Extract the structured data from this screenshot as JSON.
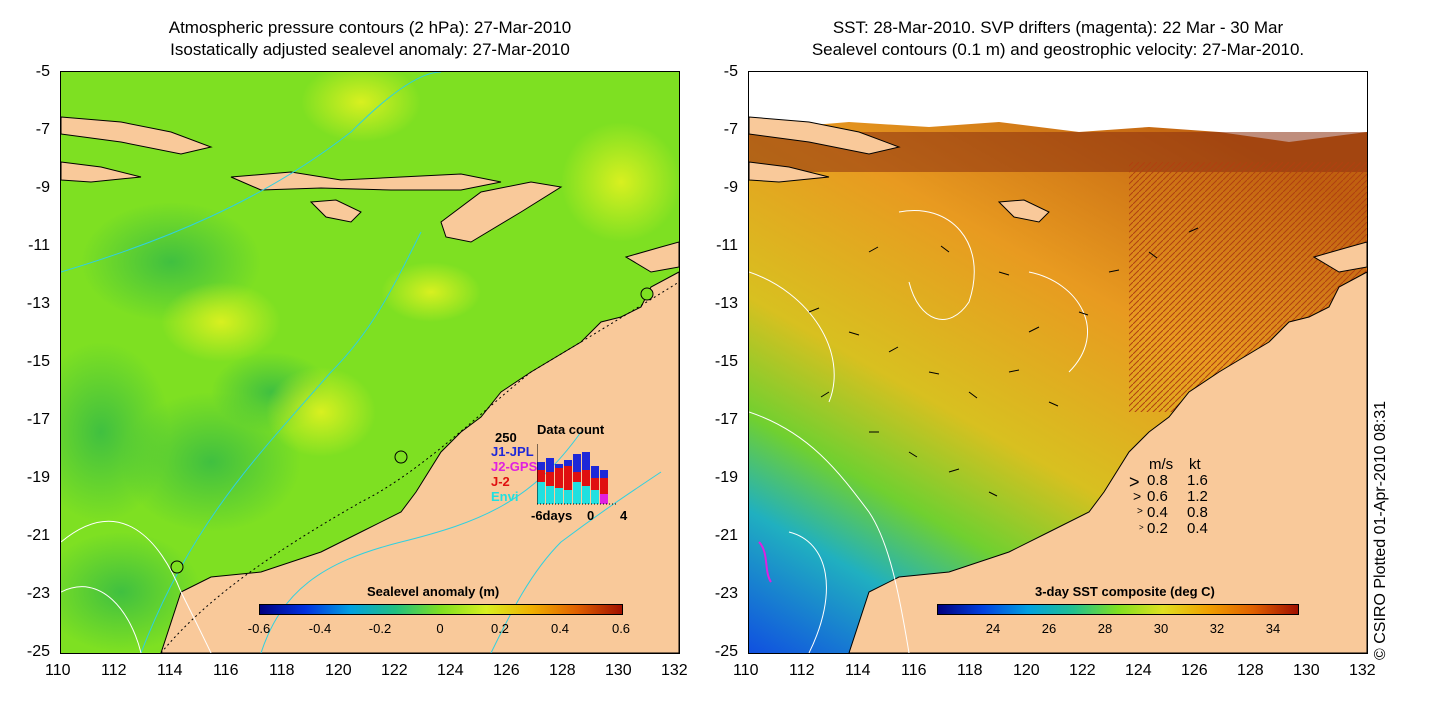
{
  "left_panel": {
    "title_line1": "Atmospheric pressure contours (2 hPa): 27-Mar-2010",
    "title_line2": "Isostatically adjusted sealevel anomaly: 27-Mar-2010",
    "x_ticks": [
      "110",
      "112",
      "114",
      "116",
      "118",
      "120",
      "122",
      "124",
      "126",
      "128",
      "130",
      "132"
    ],
    "y_ticks": [
      "-5",
      "-7",
      "-9",
      "-11",
      "-13",
      "-15",
      "-17",
      "-19",
      "-21",
      "-23",
      "-25"
    ],
    "colorbar_title": "Sealevel anomaly (m)",
    "colorbar_ticks": [
      "-0.6",
      "-0.4",
      "-0.2",
      "0",
      "0.2",
      "0.4",
      "0.6"
    ],
    "colorbar_range": [
      -0.6,
      0.6
    ],
    "data_count": {
      "title": "Data count",
      "max_label": "250",
      "series_labels": [
        "J1-JPL",
        "J2-GPS",
        "J-2",
        "Envi"
      ],
      "series_colors": [
        "#1e28d8",
        "#e020e0",
        "#e01010",
        "#20e0e0"
      ],
      "axis_labels": [
        "-6days",
        "0",
        "4"
      ]
    }
  },
  "right_panel": {
    "title_line1": "SST: 28-Mar-2010. SVP drifters (magenta): 22 Mar - 30 Mar",
    "title_line2": "Sealevel contours (0.1 m) and geostrophic velocity: 27-Mar-2010.",
    "x_ticks": [
      "110",
      "112",
      "114",
      "116",
      "118",
      "120",
      "122",
      "124",
      "126",
      "128",
      "130",
      "132"
    ],
    "y_ticks": [
      "-5",
      "-7",
      "-9",
      "-11",
      "-13",
      "-15",
      "-17",
      "-19",
      "-21",
      "-23",
      "-25"
    ],
    "colorbar_title": "3-day SST composite (deg C)",
    "colorbar_ticks": [
      "24",
      "26",
      "28",
      "30",
      "32",
      "34"
    ],
    "colorbar_range": [
      22.6,
      35.4
    ],
    "velocity_legend": {
      "header_ms": "m/s",
      "header_kt": "kt",
      "rows": [
        {
          "ms": "0.8",
          "kt": "1.6"
        },
        {
          "ms": "0.6",
          "kt": "1.2"
        },
        {
          "ms": "0.4",
          "kt": "0.8"
        },
        {
          "ms": "0.2",
          "kt": "0.4"
        }
      ]
    }
  },
  "copyright": "© CSIRO Plotted 01-Apr-2010 08:31",
  "colors": {
    "land": "#f9c99a",
    "sla_green": "#80e020",
    "sst_orange": "#e8a020",
    "sst_blue": "#1060e0"
  }
}
